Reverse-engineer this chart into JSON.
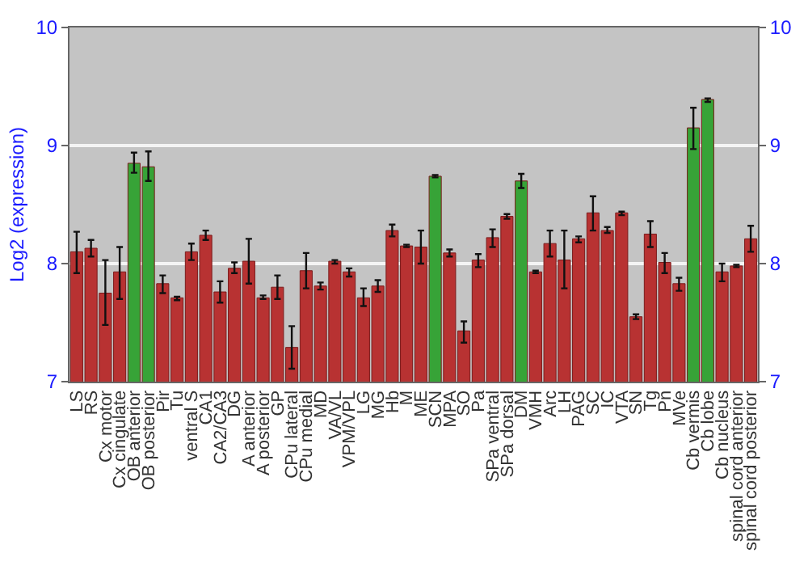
{
  "chart_data": {
    "type": "bar",
    "ylabel": "Log2 (expression)",
    "categories": [
      "LS",
      "RS",
      "Cx motor",
      "Cx cingulate",
      "OB anterior",
      "OB posterior",
      "Pir",
      "Tu",
      "ventral S",
      "CA1",
      "CA2/CA3",
      "DG",
      "A anterior",
      "A posterior",
      "GP",
      "CPu lateral",
      "CPu medial",
      "MD",
      "VA/VL",
      "VPM/VPL",
      "LG",
      "MG",
      "Hb",
      "M",
      "ME",
      "SCN",
      "MPA",
      "SO",
      "Pa",
      "SPa ventral",
      "SPa dorsal",
      "DM",
      "VMH",
      "Arc",
      "LH",
      "PAG",
      "SC",
      "IC",
      "VTA",
      "SN",
      "Tg",
      "Pn",
      "MVe",
      "Cb vermis",
      "Cb lobe",
      "Cb nucleus",
      "spinal cord anterior",
      "spinal cord posterior"
    ],
    "values": [
      8.1,
      8.13,
      7.75,
      7.93,
      8.85,
      8.82,
      7.83,
      7.71,
      8.1,
      8.24,
      7.76,
      7.96,
      8.02,
      7.71,
      7.8,
      7.29,
      7.94,
      7.81,
      8.02,
      7.93,
      7.71,
      7.81,
      8.28,
      8.15,
      8.14,
      8.74,
      8.09,
      7.43,
      8.03,
      8.22,
      8.4,
      8.7,
      7.93,
      8.17,
      8.03,
      8.21,
      8.43,
      8.28,
      8.43,
      7.55,
      8.25,
      8.01,
      7.83,
      9.15,
      9.39,
      7.93,
      7.98,
      8.21
    ],
    "errors": [
      [
        7.92,
        8.27
      ],
      [
        8.06,
        8.2
      ],
      [
        7.48,
        8.03
      ],
      [
        7.7,
        8.14
      ],
      [
        8.77,
        8.94
      ],
      [
        8.7,
        8.95
      ],
      [
        7.75,
        7.9
      ],
      [
        7.69,
        7.72
      ],
      [
        8.03,
        8.17
      ],
      [
        8.2,
        8.28
      ],
      [
        7.67,
        7.85
      ],
      [
        7.92,
        8.01
      ],
      [
        7.83,
        8.21
      ],
      [
        7.7,
        7.73
      ],
      [
        7.7,
        7.9
      ],
      [
        7.11,
        7.47
      ],
      [
        7.79,
        8.09
      ],
      [
        7.78,
        7.84
      ],
      [
        8.0,
        8.03
      ],
      [
        7.89,
        7.96
      ],
      [
        7.64,
        7.79
      ],
      [
        7.76,
        7.86
      ],
      [
        8.23,
        8.33
      ],
      [
        8.14,
        8.16
      ],
      [
        8.0,
        8.28
      ],
      [
        8.73,
        8.75
      ],
      [
        8.06,
        8.12
      ],
      [
        7.33,
        7.51
      ],
      [
        7.97,
        8.08
      ],
      [
        8.14,
        8.29
      ],
      [
        8.38,
        8.42
      ],
      [
        8.64,
        8.76
      ],
      [
        7.92,
        7.94
      ],
      [
        8.06,
        8.28
      ],
      [
        7.79,
        8.28
      ],
      [
        8.18,
        8.23
      ],
      [
        8.28,
        8.57
      ],
      [
        8.26,
        8.31
      ],
      [
        8.41,
        8.44
      ],
      [
        7.53,
        7.57
      ],
      [
        8.14,
        8.36
      ],
      [
        7.92,
        8.09
      ],
      [
        7.77,
        7.88
      ],
      [
        8.97,
        9.32
      ],
      [
        9.37,
        9.4
      ],
      [
        7.85,
        8.0
      ],
      [
        7.97,
        7.99
      ],
      [
        8.1,
        8.32
      ]
    ],
    "colors": [
      "#b83232",
      "#b83232",
      "#b83232",
      "#b83232",
      "#37a337",
      "#37a337",
      "#b83232",
      "#b83232",
      "#b83232",
      "#b83232",
      "#b83232",
      "#b83232",
      "#b83232",
      "#b83232",
      "#b83232",
      "#b83232",
      "#b83232",
      "#b83232",
      "#b83232",
      "#b83232",
      "#b83232",
      "#b83232",
      "#b83232",
      "#b83232",
      "#b83232",
      "#37a337",
      "#b83232",
      "#b83232",
      "#b83232",
      "#b83232",
      "#b83232",
      "#37a337",
      "#b83232",
      "#b83232",
      "#b83232",
      "#b83232",
      "#b83232",
      "#b83232",
      "#b83232",
      "#b83232",
      "#b83232",
      "#b83232",
      "#b83232",
      "#37a337",
      "#37a337",
      "#b83232",
      "#b83232",
      "#b83232"
    ],
    "ylim": [
      7,
      10
    ],
    "yticks": [
      7,
      8,
      9,
      10
    ],
    "y2lim": [
      7,
      10
    ],
    "y2ticks": [
      7,
      8,
      9,
      10
    ],
    "grid": "y",
    "legend": false
  }
}
